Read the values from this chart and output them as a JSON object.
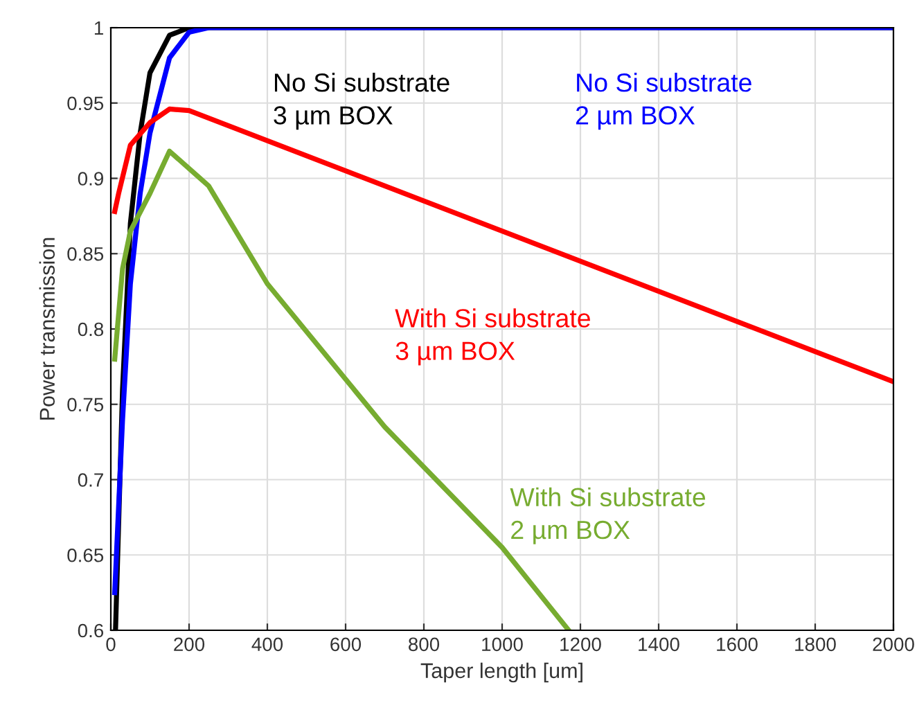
{
  "chart_data": {
    "type": "line",
    "xlabel": "Taper length [um]",
    "ylabel": "Power transmission",
    "xlim": [
      0,
      2000
    ],
    "ylim": [
      0.6,
      1.0
    ],
    "xticks": [
      0,
      200,
      400,
      600,
      800,
      1000,
      1200,
      1400,
      1600,
      1800,
      2000
    ],
    "yticks": [
      {
        "value": 0.6,
        "label": "0.6"
      },
      {
        "value": 0.65,
        "label": "0.65"
      },
      {
        "value": 0.7,
        "label": "0.7"
      },
      {
        "value": 0.75,
        "label": "0.75"
      },
      {
        "value": 0.8,
        "label": "0.8"
      },
      {
        "value": 0.85,
        "label": "0.85"
      },
      {
        "value": 0.9,
        "label": "0.9"
      },
      {
        "value": 0.95,
        "label": "0.95"
      },
      {
        "value": 1.0,
        "label": "1"
      }
    ],
    "grid": true,
    "line_style": "solid",
    "series": [
      {
        "name": "No Si substrate\n3 µm BOX",
        "color": "#000000",
        "x": [
          12,
          30,
          50,
          75,
          100,
          150,
          200,
          2000
        ],
        "values": [
          0.6,
          0.76,
          0.87,
          0.93,
          0.97,
          0.995,
          1.0,
          1.0
        ]
      },
      {
        "name": "No Si substrate\n2 µm BOX",
        "color": "#0000ff",
        "x": [
          10,
          30,
          50,
          75,
          100,
          150,
          200,
          250,
          2000
        ],
        "values": [
          0.625,
          0.74,
          0.83,
          0.89,
          0.93,
          0.98,
          0.997,
          1.0,
          1.0
        ]
      },
      {
        "name": "With Si substrate\n3 µm BOX",
        "color": "#ff0000",
        "x": [
          10,
          20,
          50,
          100,
          150,
          200,
          2000
        ],
        "values": [
          0.878,
          0.89,
          0.922,
          0.937,
          0.946,
          0.945,
          0.765
        ]
      },
      {
        "name": "With Si substrate\n2 µm BOX",
        "color": "#77ac30",
        "x": [
          10,
          30,
          50,
          100,
          150,
          250,
          400,
          700,
          1000,
          1170
        ],
        "values": [
          0.78,
          0.84,
          0.865,
          0.89,
          0.918,
          0.895,
          0.83,
          0.735,
          0.655,
          0.6
        ]
      }
    ]
  }
}
